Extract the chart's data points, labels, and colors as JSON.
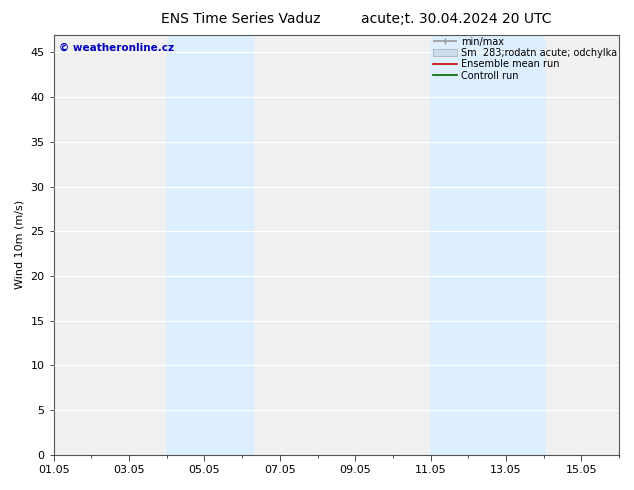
{
  "title_left": "ENS Time Series Vaduz",
  "title_right": "acute;t. 30.04.2024 20 UTC",
  "ylabel": "Wind 10m (m/s)",
  "watermark": "© weatheronline.cz",
  "ylim": [
    0,
    47
  ],
  "yticks": [
    0,
    5,
    10,
    15,
    20,
    25,
    30,
    35,
    40,
    45
  ],
  "xtick_labels": [
    "01.05",
    "03.05",
    "05.05",
    "07.05",
    "09.05",
    "11.05",
    "13.05",
    "15.05"
  ],
  "xtick_positions": [
    0,
    2,
    4,
    6,
    8,
    10,
    12,
    14
  ],
  "shaded_bands": [
    {
      "x_start": 3.0,
      "x_end": 5.3,
      "color": "#ddeeff"
    },
    {
      "x_start": 10.0,
      "x_end": 12.0,
      "color": "#ddeeff"
    },
    {
      "x_start": 12.0,
      "x_end": 13.0,
      "color": "#ddeeff"
    }
  ],
  "background_color": "#ffffff",
  "plot_bg_color": "#f0f0f0",
  "grid_color": "#ffffff",
  "legend_items": [
    {
      "label": "min/max",
      "color": "#999999",
      "lw": 1.2
    },
    {
      "label": "Sm  283;rodatn acute; odchylka",
      "color": "#ccddee",
      "lw": 8
    },
    {
      "label": "Ensemble mean run",
      "color": "#cc0000",
      "lw": 1.2
    },
    {
      "label": "Controll run",
      "color": "#006600",
      "lw": 1.2
    }
  ],
  "title_fontsize": 10,
  "tick_fontsize": 8,
  "ylabel_fontsize": 8,
  "watermark_color": "#0000bb",
  "watermark_fontsize": 7.5,
  "total_days": 15
}
